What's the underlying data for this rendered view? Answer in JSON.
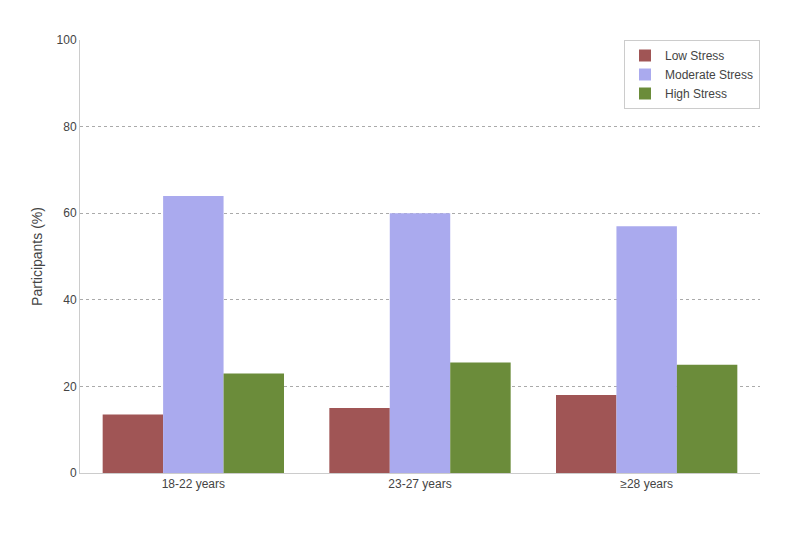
{
  "chart_data": {
    "type": "bar",
    "ylabel": "Participants (%)",
    "categories": [
      "18-22 years",
      "23-27 years",
      "≥28 years"
    ],
    "series": [
      {
        "name": "Low Stress",
        "color": "#a05555",
        "values": [
          13.5,
          15.0,
          18.0
        ]
      },
      {
        "name": "Moderate Stress",
        "color": "#aaaaee",
        "values": [
          64.0,
          60.0,
          57.0
        ]
      },
      {
        "name": "High Stress",
        "color": "#6b8c3a",
        "values": [
          23.0,
          25.5,
          25.0
        ]
      }
    ],
    "ylim": [
      0,
      100
    ],
    "yticks": [
      0,
      20,
      40,
      60,
      80,
      100
    ],
    "grid": true,
    "legend": "upper right"
  }
}
